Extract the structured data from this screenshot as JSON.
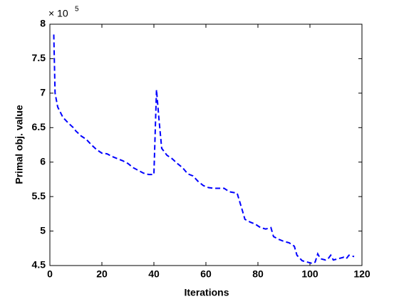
{
  "chart_data": {
    "type": "line",
    "xlabel": "Iterations",
    "ylabel": "Primal obj. value",
    "y_multiplier": "× 10",
    "y_multiplier_exponent": 5,
    "x": [
      1.5,
      2,
      3,
      5,
      7,
      9,
      10,
      12,
      14,
      16,
      18,
      20,
      22,
      24,
      26,
      28,
      30,
      32,
      34,
      36,
      38,
      40,
      41,
      42,
      43,
      45,
      47,
      49,
      51,
      53,
      55,
      57,
      59,
      61,
      63,
      65,
      67,
      69,
      72,
      74,
      75,
      77,
      79,
      81,
      83,
      85,
      86,
      88,
      90,
      92,
      94,
      95,
      97,
      99,
      101,
      102,
      103,
      104,
      106,
      107,
      108,
      109,
      111,
      113,
      114,
      115,
      117
    ],
    "series": [
      {
        "name": "Primal obj. value",
        "color": "#0000ff",
        "values": [
          7.85,
          7.0,
          6.8,
          6.65,
          6.57,
          6.5,
          6.45,
          6.38,
          6.33,
          6.25,
          6.18,
          6.13,
          6.12,
          6.08,
          6.05,
          6.02,
          5.98,
          5.92,
          5.88,
          5.84,
          5.82,
          5.82,
          7.05,
          6.6,
          6.2,
          6.1,
          6.05,
          5.98,
          5.92,
          5.83,
          5.8,
          5.72,
          5.66,
          5.63,
          5.62,
          5.62,
          5.62,
          5.57,
          5.55,
          5.3,
          5.17,
          5.13,
          5.1,
          5.05,
          5.03,
          5.05,
          4.92,
          4.88,
          4.85,
          4.83,
          4.78,
          4.65,
          4.57,
          4.55,
          4.53,
          4.55,
          4.67,
          4.6,
          4.58,
          4.6,
          4.65,
          4.58,
          4.6,
          4.62,
          4.6,
          4.65,
          4.63
        ]
      }
    ],
    "xlim": [
      0,
      120
    ],
    "xticks": [
      0,
      20,
      40,
      60,
      80,
      100,
      120
    ],
    "ylim": [
      4.5,
      8
    ],
    "yticks": [
      4.5,
      5,
      5.5,
      6,
      6.5,
      7,
      7.5,
      8
    ],
    "grid": false,
    "dashed": true
  }
}
